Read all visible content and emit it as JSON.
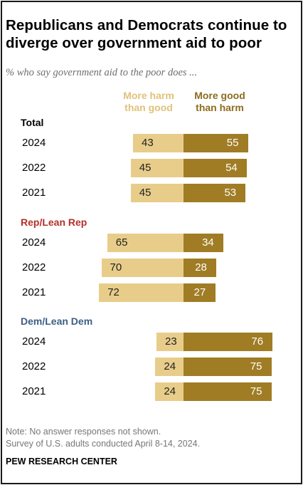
{
  "title": "Republicans and Democrats continue to diverge over government aid to poor",
  "subtitle": "% who say government aid to the poor does ...",
  "note": "Note: No answer responses not shown.",
  "source": "Survey of U.S. adults conducted April 8-14, 2024.",
  "credit": "PEW RESEARCH CENTER",
  "colors": {
    "harm": "#e8cd8a",
    "good": "#a07c24",
    "rep": "#b4302a",
    "dem": "#3d5f83"
  },
  "chart_data": {
    "type": "bar",
    "orientation": "horizontal-diverging",
    "series": [
      {
        "name": "More harm than good",
        "color": "#e8cd8a"
      },
      {
        "name": "More good than harm",
        "color": "#a07c24"
      }
    ],
    "groups": [
      {
        "name": "Total",
        "rows": [
          {
            "year": "2024",
            "harm": 43,
            "good": 55
          },
          {
            "year": "2022",
            "harm": 45,
            "good": 54
          },
          {
            "year": "2021",
            "harm": 45,
            "good": 53
          }
        ]
      },
      {
        "name": "Rep/Lean Rep",
        "rows": [
          {
            "year": "2024",
            "harm": 65,
            "good": 34
          },
          {
            "year": "2022",
            "harm": 70,
            "good": 28
          },
          {
            "year": "2021",
            "harm": 72,
            "good": 27
          }
        ]
      },
      {
        "name": "Dem/Lean Dem",
        "rows": [
          {
            "year": "2024",
            "harm": 23,
            "good": 76
          },
          {
            "year": "2022",
            "harm": 24,
            "good": 75
          },
          {
            "year": "2021",
            "harm": 24,
            "good": 75
          }
        ]
      }
    ]
  }
}
